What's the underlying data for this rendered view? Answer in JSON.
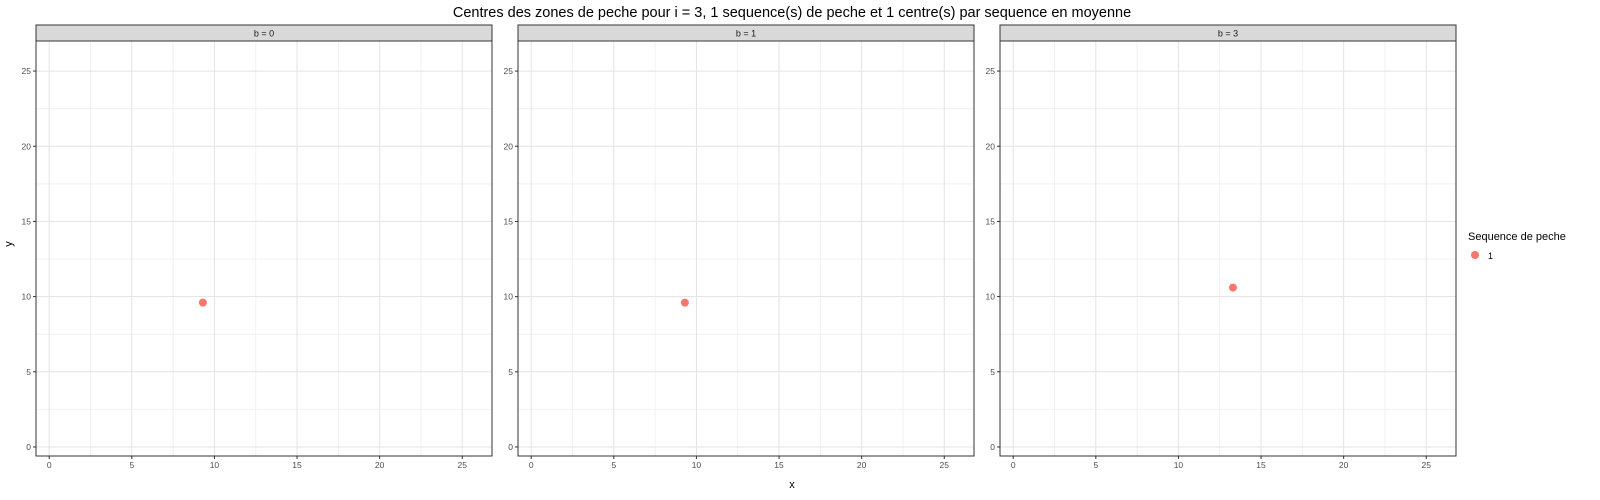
{
  "chart_data": {
    "type": "scatter",
    "title": "Centres des zones de peche pour i = 3, 1 sequence(s) de peche et 1 centre(s) par sequence en moyenne",
    "xlabel": "x",
    "ylabel": "y",
    "xlim": [
      -0.8,
      26.8
    ],
    "ylim": [
      -0.6,
      27.0
    ],
    "x_ticks": [
      0,
      5,
      10,
      15,
      20,
      25
    ],
    "y_ticks": [
      0,
      5,
      10,
      15,
      20,
      25
    ],
    "grid": true,
    "legend": {
      "title": "Sequence de peche",
      "placement": "right",
      "entries": [
        {
          "label": "1",
          "color": "#F8766D"
        }
      ]
    },
    "facets": [
      {
        "label": "b = 0",
        "series": [
          {
            "name": "1",
            "color": "#F8766D",
            "points": [
              {
                "x": 9.3,
                "y": 9.6
              }
            ]
          }
        ]
      },
      {
        "label": "b = 1",
        "series": [
          {
            "name": "1",
            "color": "#F8766D",
            "points": [
              {
                "x": 9.3,
                "y": 9.6
              }
            ]
          }
        ]
      },
      {
        "label": "b = 3",
        "series": [
          {
            "name": "1",
            "color": "#F8766D",
            "points": [
              {
                "x": 13.3,
                "y": 10.6
              }
            ]
          }
        ]
      }
    ]
  }
}
